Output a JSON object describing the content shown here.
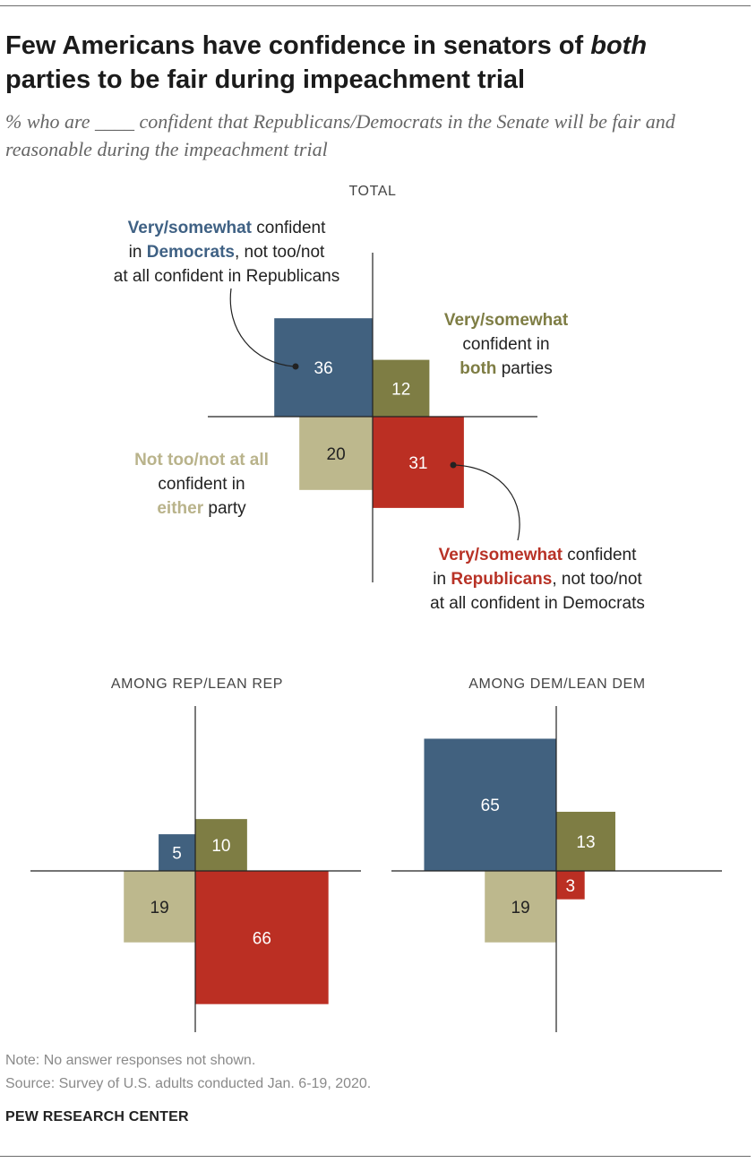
{
  "title_line1_pre": "Few Americans have confidence in senators of ",
  "title_line1_em": "both",
  "title_line2": "parties to be fair during impeachment trial",
  "subtitle": "% who are ____ confident that Republicans/Democrats in the Senate will be fair and reasonable during the impeachment trial",
  "annotations": {
    "dem": {
      "b": "Very/somewhat",
      "t1": " confident",
      "t2": "in ",
      "b2": "Democrats",
      "t3": ", not too/not",
      "t4": "at all confident in Republicans"
    },
    "both": {
      "b": "Very/somewhat",
      "t1": "confident in",
      "b2": "both",
      "t2": " parties"
    },
    "either": {
      "b": "Not too/not at all",
      "t1": "confident in",
      "b2": "either",
      "t2": " party"
    },
    "rep": {
      "b": "Very/somewhat",
      "t1": " confident",
      "t2": "in ",
      "b2": "Republicans",
      "t3": ", not too/not",
      "t4": "at all confident in Democrats"
    }
  },
  "chart_data": [
    {
      "type": "quadrant",
      "title": "TOTAL",
      "series": [
        {
          "name": "Very/somewhat confident in Democrats, not too/not at all confident in Republicans",
          "quadrant": "top-left",
          "value": 36,
          "color": "#41617f"
        },
        {
          "name": "Very/somewhat confident in both parties",
          "quadrant": "top-right",
          "value": 12,
          "color": "#7e7d44"
        },
        {
          "name": "Not too/not at all confident in either party",
          "quadrant": "bottom-left",
          "value": 20,
          "color": "#bdb88d"
        },
        {
          "name": "Very/somewhat confident in Republicans, not too/not at all confident in Democrats",
          "quadrant": "bottom-right",
          "value": 31,
          "color": "#bb2f23"
        }
      ]
    },
    {
      "type": "quadrant",
      "title": "AMONG REP/LEAN REP",
      "series": [
        {
          "name": "Confident in Democrats only",
          "quadrant": "top-left",
          "value": 5,
          "color": "#41617f"
        },
        {
          "name": "Confident in both parties",
          "quadrant": "top-right",
          "value": 10,
          "color": "#7e7d44"
        },
        {
          "name": "Confident in neither party",
          "quadrant": "bottom-left",
          "value": 19,
          "color": "#bdb88d"
        },
        {
          "name": "Confident in Republicans only",
          "quadrant": "bottom-right",
          "value": 66,
          "color": "#bb2f23"
        }
      ]
    },
    {
      "type": "quadrant",
      "title": "AMONG DEM/LEAN DEM",
      "series": [
        {
          "name": "Confident in Democrats only",
          "quadrant": "top-left",
          "value": 65,
          "color": "#41617f"
        },
        {
          "name": "Confident in both parties",
          "quadrant": "top-right",
          "value": 13,
          "color": "#7e7d44"
        },
        {
          "name": "Confident in neither party",
          "quadrant": "bottom-left",
          "value": 19,
          "color": "#bdb88d"
        },
        {
          "name": "Confident in Republicans only",
          "quadrant": "bottom-right",
          "value": 3,
          "color": "#bb2f23"
        }
      ]
    }
  ],
  "note": "Note: No answer responses not shown.",
  "source": "Source: Survey of U.S. adults conducted Jan. 6-19, 2020.",
  "brand": "PEW RESEARCH CENTER"
}
